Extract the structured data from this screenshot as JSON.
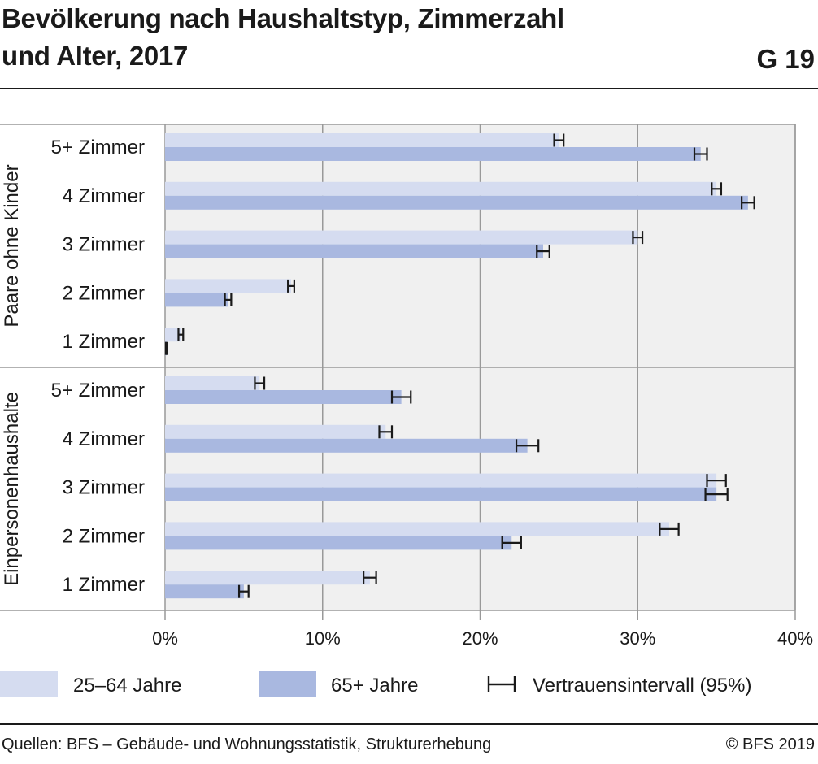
{
  "header": {
    "title_line1": "Bevölkerung nach Haushaltstyp, Zimmerzahl",
    "title_line2": "und Alter, 2017",
    "graphic_number": "G 19"
  },
  "footer": {
    "source": "Quellen: BFS – Gebäude- und Wohnungsstatistik, Strukturerhebung",
    "copyright": "© BFS 2019"
  },
  "colors": {
    "series_25_64": "#d5dcf0",
    "series_65plus": "#a9b8e0",
    "plot_background": "#f0f0f0",
    "grid": "#999999",
    "error_bar": "#1a1a1a"
  },
  "chart_data": {
    "type": "bar",
    "orientation": "horizontal",
    "xlim": [
      0,
      40
    ],
    "ticks": [
      "0%",
      "10%",
      "20%",
      "30%",
      "40%"
    ],
    "grid": true,
    "legend_position": "bottom",
    "legend_ci_label": "Vertrauensintervall (95%)",
    "series": [
      {
        "name": "25–64 Jahre"
      },
      {
        "name": "65+ Jahre"
      }
    ],
    "groups": [
      {
        "name": "Paare ohne Kinder",
        "categories": [
          "5+ Zimmer",
          "4 Zimmer",
          "3 Zimmer",
          "2 Zimmer",
          "1 Zimmer"
        ],
        "values_25_64": [
          25.0,
          35.0,
          30.0,
          8.0,
          1.0
        ],
        "ci_25_64": [
          0.3,
          0.3,
          0.3,
          0.2,
          0.1
        ],
        "values_65plus": [
          34.0,
          37.0,
          24.0,
          4.0,
          0.1
        ],
        "ci_65plus": [
          0.4,
          0.4,
          0.4,
          0.2,
          0.0
        ]
      },
      {
        "name": "Einpersonenhaushalte",
        "categories": [
          "5+ Zimmer",
          "4 Zimmer",
          "3 Zimmer",
          "2 Zimmer",
          "1 Zimmer"
        ],
        "values_25_64": [
          6.0,
          14.0,
          35.0,
          32.0,
          13.0
        ],
        "ci_25_64": [
          0.3,
          0.4,
          0.6,
          0.6,
          0.4
        ],
        "values_65plus": [
          15.0,
          23.0,
          35.0,
          22.0,
          5.0
        ],
        "ci_65plus": [
          0.6,
          0.7,
          0.7,
          0.6,
          0.3
        ]
      }
    ]
  }
}
